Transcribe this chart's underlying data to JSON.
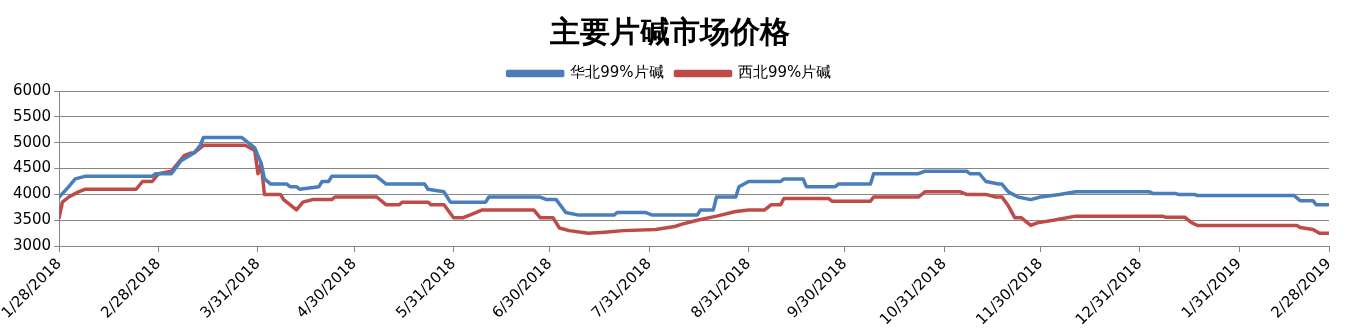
{
  "chart_data": {
    "type": "line",
    "title": "主要片碱市场价格",
    "legend": "top",
    "grid": "y",
    "marker": "none",
    "line_style": "solid",
    "xlim": [
      "2018-01-28",
      "2019-02-28"
    ],
    "xticks": [
      {
        "value": "2018-01-28",
        "label": "1/28/2018"
      },
      {
        "value": "2018-02-28",
        "label": "2/28/2018"
      },
      {
        "value": "2018-03-31",
        "label": "3/31/2018"
      },
      {
        "value": "2018-04-30",
        "label": "4/30/2018"
      },
      {
        "value": "2018-05-31",
        "label": "5/31/2018"
      },
      {
        "value": "2018-06-30",
        "label": "6/30/2018"
      },
      {
        "value": "2018-07-31",
        "label": "7/31/2018"
      },
      {
        "value": "2018-08-31",
        "label": "8/31/2018"
      },
      {
        "value": "2018-09-30",
        "label": "9/30/2018"
      },
      {
        "value": "2018-10-31",
        "label": "10/31/2018"
      },
      {
        "value": "2018-11-30",
        "label": "11/30/2018"
      },
      {
        "value": "2018-12-31",
        "label": "12/31/2018"
      },
      {
        "value": "2019-01-31",
        "label": "1/31/2019"
      },
      {
        "value": "2019-02-28",
        "label": "2/28/2019"
      }
    ],
    "ylim": [
      3000,
      6000
    ],
    "yticks": [
      3000,
      3500,
      4000,
      4500,
      5000,
      5500,
      6000
    ],
    "series": [
      {
        "name": "华北99%片碱",
        "color": "#4a7ebb",
        "x": [
          "2018-01-28",
          "2018-01-31",
          "2018-02-02",
          "2018-02-05",
          "2018-02-26",
          "2018-02-27",
          "2018-03-04",
          "2018-03-07",
          "2018-03-11",
          "2018-03-13",
          "2018-03-14",
          "2018-03-26",
          "2018-03-29",
          "2018-03-30",
          "2018-04-01",
          "2018-04-02",
          "2018-04-04",
          "2018-04-09",
          "2018-04-10",
          "2018-04-12",
          "2018-04-13",
          "2018-04-19",
          "2018-04-20",
          "2018-04-22",
          "2018-04-23",
          "2018-05-07",
          "2018-05-10",
          "2018-05-22",
          "2018-05-23",
          "2018-05-28",
          "2018-05-30",
          "2018-06-10",
          "2018-06-11",
          "2018-06-27",
          "2018-06-29",
          "2018-07-02",
          "2018-07-05",
          "2018-07-09",
          "2018-07-20",
          "2018-07-21",
          "2018-07-30",
          "2018-08-01",
          "2018-08-15",
          "2018-08-16",
          "2018-08-20",
          "2018-08-21",
          "2018-08-27",
          "2018-08-28",
          "2018-08-31",
          "2018-09-10",
          "2018-09-11",
          "2018-09-17",
          "2018-09-18",
          "2018-09-27",
          "2018-09-28",
          "2018-10-08",
          "2018-10-09",
          "2018-10-23",
          "2018-10-25",
          "2018-11-07",
          "2018-11-08",
          "2018-11-11",
          "2018-11-13",
          "2018-11-17",
          "2018-11-18",
          "2018-11-20",
          "2018-11-23",
          "2018-11-27",
          "2018-11-30",
          "2018-12-06",
          "2018-12-11",
          "2019-01-03",
          "2019-01-04",
          "2019-01-11",
          "2019-01-12",
          "2019-01-17",
          "2019-01-18",
          "2019-02-17",
          "2019-02-19",
          "2019-02-23",
          "2019-02-24",
          "2019-02-28"
        ],
        "values": [
          3950,
          4150,
          4300,
          4350,
          4350,
          4400,
          4400,
          4650,
          4800,
          4950,
          5100,
          5100,
          4950,
          4900,
          4600,
          4300,
          4200,
          4200,
          4150,
          4150,
          4100,
          4150,
          4250,
          4250,
          4350,
          4350,
          4200,
          4200,
          4100,
          4050,
          3850,
          3850,
          3950,
          3950,
          3900,
          3900,
          3650,
          3600,
          3600,
          3650,
          3650,
          3600,
          3600,
          3700,
          3700,
          3950,
          3950,
          4150,
          4250,
          4250,
          4300,
          4300,
          4150,
          4150,
          4200,
          4200,
          4400,
          4400,
          4450,
          4450,
          4400,
          4400,
          4250,
          4200,
          4200,
          4050,
          3950,
          3900,
          3950,
          4000,
          4050,
          4050,
          4020,
          4020,
          4000,
          4000,
          3980,
          3980,
          3880,
          3880,
          3800,
          3800
        ]
      },
      {
        "name": "西北99%片碱",
        "color": "#be4b48",
        "x": [
          "2018-01-28",
          "2018-01-29",
          "2018-01-31",
          "2018-02-03",
          "2018-02-05",
          "2018-02-21",
          "2018-02-23",
          "2018-02-26",
          "2018-02-28",
          "2018-03-04",
          "2018-03-08",
          "2018-03-10",
          "2018-03-11",
          "2018-03-14",
          "2018-03-27",
          "2018-03-30",
          "2018-03-31",
          "2018-04-01",
          "2018-04-02",
          "2018-04-07",
          "2018-04-08",
          "2018-04-12",
          "2018-04-14",
          "2018-04-17",
          "2018-04-23",
          "2018-04-24",
          "2018-05-07",
          "2018-05-10",
          "2018-05-14",
          "2018-05-15",
          "2018-05-23",
          "2018-05-24",
          "2018-05-28",
          "2018-05-31",
          "2018-06-03",
          "2018-06-05",
          "2018-06-09",
          "2018-06-25",
          "2018-06-27",
          "2018-07-01",
          "2018-07-03",
          "2018-07-06",
          "2018-07-12",
          "2018-07-17",
          "2018-07-23",
          "2018-08-02",
          "2018-08-08",
          "2018-08-10",
          "2018-08-15",
          "2018-08-21",
          "2018-08-27",
          "2018-08-31",
          "2018-09-05",
          "2018-09-07",
          "2018-09-10",
          "2018-09-11",
          "2018-09-25",
          "2018-09-26",
          "2018-10-08",
          "2018-10-09",
          "2018-10-23",
          "2018-10-25",
          "2018-11-05",
          "2018-11-07",
          "2018-11-13",
          "2018-11-16",
          "2018-11-18",
          "2018-11-20",
          "2018-11-22",
          "2018-11-24",
          "2018-11-27",
          "2018-11-29",
          "2018-12-04",
          "2018-12-11",
          "2019-01-07",
          "2019-01-08",
          "2019-01-14",
          "2019-01-16",
          "2019-01-18",
          "2019-02-18",
          "2019-02-19",
          "2019-02-23",
          "2019-02-25",
          "2019-02-28"
        ],
        "values": [
          3550,
          3850,
          3950,
          4050,
          4100,
          4100,
          4250,
          4250,
          4400,
          4450,
          4750,
          4800,
          4800,
          4950,
          4950,
          4850,
          4400,
          4600,
          4000,
          4000,
          3900,
          3700,
          3850,
          3900,
          3900,
          3950,
          3950,
          3800,
          3800,
          3850,
          3850,
          3800,
          3800,
          3550,
          3550,
          3600,
          3700,
          3700,
          3550,
          3550,
          3350,
          3300,
          3250,
          3270,
          3300,
          3320,
          3380,
          3420,
          3500,
          3580,
          3670,
          3700,
          3700,
          3800,
          3800,
          3920,
          3920,
          3870,
          3870,
          3950,
          3950,
          4050,
          4050,
          4000,
          4000,
          3950,
          3950,
          3780,
          3550,
          3550,
          3400,
          3450,
          3500,
          3580,
          3580,
          3560,
          3560,
          3460,
          3400,
          3400,
          3360,
          3320,
          3250,
          3250
        ]
      }
    ]
  }
}
